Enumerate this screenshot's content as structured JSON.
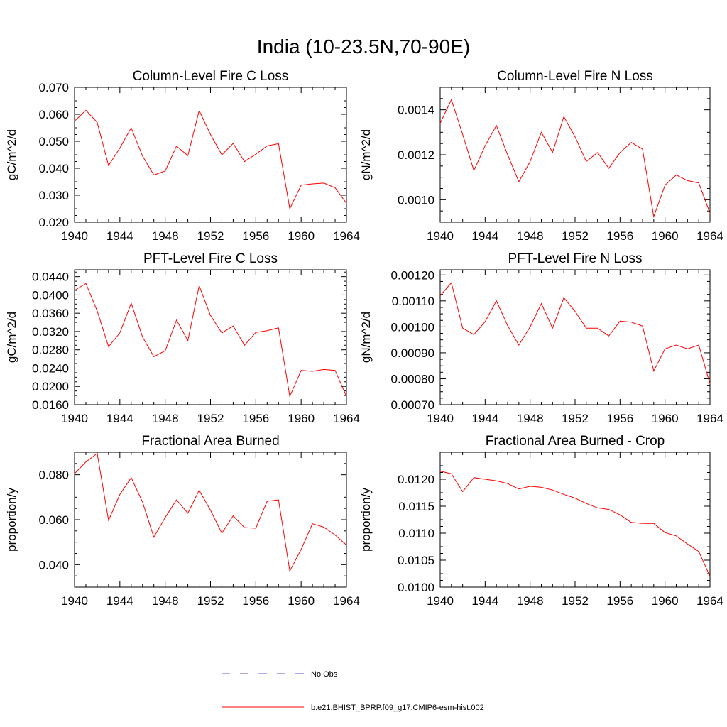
{
  "title": "India (10-23.5N,70-90E)",
  "colors": {
    "model_line": "#ff0000",
    "obs_line": "#5a5ad6"
  },
  "legend": {
    "entries": [
      {
        "label": "No Obs",
        "style": "dashed",
        "color": "#5a5ad6"
      },
      {
        "label": "b.e21.BHIST_BPRP.f09_g17.CMIP6-esm-hist.002",
        "style": "solid",
        "color": "#ff0000"
      }
    ]
  },
  "chart_data": [
    {
      "type": "line",
      "title": "Column-Level Fire C Loss",
      "xlabel": "",
      "ylabel": "gC/m^2/d",
      "xlim": [
        1940,
        1964
      ],
      "ylim": [
        0.02,
        0.07
      ],
      "xticks": [
        "1940",
        "1944",
        "1948",
        "1952",
        "1956",
        "1960",
        "1964"
      ],
      "yticks": [
        "0.020",
        "0.030",
        "0.040",
        "0.050",
        "0.060",
        "0.070"
      ],
      "x": [
        1940,
        1941,
        1942,
        1943,
        1944,
        1945,
        1946,
        1947,
        1948,
        1949,
        1950,
        1951,
        1952,
        1953,
        1954,
        1955,
        1956,
        1957,
        1958,
        1959,
        1960,
        1961,
        1962,
        1963,
        1964
      ],
      "series": [
        {
          "name": "b.e21.BHIST_BPRP.f09_g17.CMIP6-esm-hist.002",
          "values": [
            0.0575,
            0.0615,
            0.057,
            0.041,
            0.0475,
            0.055,
            0.0445,
            0.0375,
            0.039,
            0.0482,
            0.0447,
            0.0614,
            0.0525,
            0.045,
            0.0492,
            0.0425,
            0.0452,
            0.0483,
            0.0491,
            0.025,
            0.0337,
            0.0342,
            0.0345,
            0.0328,
            0.027
          ]
        }
      ]
    },
    {
      "type": "line",
      "title": "Column-Level Fire N Loss",
      "xlabel": "",
      "ylabel": "gN/m^2/d",
      "xlim": [
        1940,
        1964
      ],
      "ylim": [
        0.0009,
        0.0015
      ],
      "xticks": [
        "1940",
        "1944",
        "1948",
        "1952",
        "1956",
        "1960",
        "1964"
      ],
      "yticks": [
        "0.0010",
        "0.0012",
        "0.0014"
      ],
      "x": [
        1940,
        1941,
        1942,
        1943,
        1944,
        1945,
        1946,
        1947,
        1948,
        1949,
        1950,
        1951,
        1952,
        1953,
        1954,
        1955,
        1956,
        1957,
        1958,
        1959,
        1960,
        1961,
        1962,
        1963,
        1964
      ],
      "series": [
        {
          "name": "b.e21.BHIST_BPRP.f09_g17.CMIP6-esm-hist.002",
          "values": [
            0.00134,
            0.001445,
            0.00129,
            0.00113,
            0.00124,
            0.00133,
            0.0012,
            0.00108,
            0.00117,
            0.0013,
            0.00121,
            0.00137,
            0.00128,
            0.00117,
            0.00121,
            0.00114,
            0.00121,
            0.001255,
            0.001225,
            0.000925,
            0.001065,
            0.00111,
            0.001085,
            0.001075,
            0.00094
          ]
        }
      ]
    },
    {
      "type": "line",
      "title": "PFT-Level Fire C Loss",
      "xlabel": "",
      "ylabel": "gC/m^2/d",
      "xlim": [
        1940,
        1964
      ],
      "ylim": [
        0.016,
        0.0455
      ],
      "xticks": [
        "1940",
        "1944",
        "1948",
        "1952",
        "1956",
        "1960",
        "1964"
      ],
      "yticks": [
        "0.0160",
        "0.0200",
        "0.0240",
        "0.0280",
        "0.0320",
        "0.0360",
        "0.0400",
        "0.0440"
      ],
      "x": [
        1940,
        1941,
        1942,
        1943,
        1944,
        1945,
        1946,
        1947,
        1948,
        1949,
        1950,
        1951,
        1952,
        1953,
        1954,
        1955,
        1956,
        1957,
        1958,
        1959,
        1960,
        1961,
        1962,
        1963,
        1964
      ],
      "series": [
        {
          "name": "b.e21.BHIST_BPRP.f09_g17.CMIP6-esm-hist.002",
          "values": [
            0.041,
            0.0425,
            0.0365,
            0.0287,
            0.0317,
            0.0382,
            0.0308,
            0.0265,
            0.0278,
            0.0345,
            0.03,
            0.042,
            0.0355,
            0.0317,
            0.0332,
            0.029,
            0.0318,
            0.0322,
            0.0328,
            0.0178,
            0.0235,
            0.0233,
            0.0237,
            0.0235,
            0.0178
          ]
        }
      ]
    },
    {
      "type": "line",
      "title": "PFT-Level Fire N Loss",
      "xlabel": "",
      "ylabel": "gN/m^2/d",
      "xlim": [
        1940,
        1964
      ],
      "ylim": [
        0.0007,
        0.00122
      ],
      "xticks": [
        "1940",
        "1944",
        "1948",
        "1952",
        "1956",
        "1960",
        "1964"
      ],
      "yticks": [
        "0.00070",
        "0.00080",
        "0.00090",
        "0.00100",
        "0.00110",
        "0.00120"
      ],
      "x": [
        1940,
        1941,
        1942,
        1943,
        1944,
        1945,
        1946,
        1947,
        1948,
        1949,
        1950,
        1951,
        1952,
        1953,
        1954,
        1955,
        1956,
        1957,
        1958,
        1959,
        1960,
        1961,
        1962,
        1963,
        1964
      ],
      "series": [
        {
          "name": "b.e21.BHIST_BPRP.f09_g17.CMIP6-esm-hist.002",
          "values": [
            0.00112,
            0.00117,
            0.000995,
            0.00097,
            0.00102,
            0.0011,
            0.001005,
            0.00093,
            0.001,
            0.00109,
            0.000995,
            0.001112,
            0.00106,
            0.000995,
            0.000995,
            0.000965,
            0.001022,
            0.001018,
            0.001003,
            0.00083,
            0.000915,
            0.00093,
            0.000915,
            0.00093,
            0.00078
          ]
        }
      ]
    },
    {
      "type": "line",
      "title": "Fractional Area Burned",
      "xlabel": "",
      "ylabel": "proportion/y",
      "xlim": [
        1940,
        1964
      ],
      "ylim": [
        0.03,
        0.09
      ],
      "xticks": [
        "1940",
        "1944",
        "1948",
        "1952",
        "1956",
        "1960",
        "1964"
      ],
      "yticks": [
        "0.040",
        "0.060",
        "0.080"
      ],
      "x": [
        1940,
        1941,
        1942,
        1943,
        1944,
        1945,
        1946,
        1947,
        1948,
        1949,
        1950,
        1951,
        1952,
        1953,
        1954,
        1955,
        1956,
        1957,
        1958,
        1959,
        1960,
        1961,
        1962,
        1963,
        1964
      ],
      "series": [
        {
          "name": "b.e21.BHIST_BPRP.f09_g17.CMIP6-esm-hist.002",
          "values": [
            0.0805,
            0.0857,
            0.0895,
            0.0597,
            0.0712,
            0.0787,
            0.0678,
            0.0522,
            0.061,
            0.0688,
            0.0629,
            0.0731,
            0.0642,
            0.054,
            0.0617,
            0.0565,
            0.0562,
            0.0682,
            0.0688,
            0.0372,
            0.0468,
            0.0582,
            0.0567,
            0.0532,
            0.0487
          ]
        }
      ]
    },
    {
      "type": "line",
      "title": "Fractional Area Burned - Crop",
      "xlabel": "",
      "ylabel": "proportion/y",
      "xlim": [
        1940,
        1964
      ],
      "ylim": [
        0.01,
        0.0125
      ],
      "xticks": [
        "1940",
        "1944",
        "1948",
        "1952",
        "1956",
        "1960",
        "1964"
      ],
      "yticks": [
        "0.0100",
        "0.0105",
        "0.0110",
        "0.0115",
        "0.0120"
      ],
      "x": [
        1940,
        1941,
        1942,
        1943,
        1944,
        1945,
        1946,
        1947,
        1948,
        1949,
        1950,
        1951,
        1952,
        1953,
        1954,
        1955,
        1956,
        1957,
        1958,
        1959,
        1960,
        1961,
        1962,
        1963,
        1964
      ],
      "series": [
        {
          "name": "b.e21.BHIST_BPRP.f09_g17.CMIP6-esm-hist.002",
          "values": [
            0.01215,
            0.0121,
            0.01177,
            0.01203,
            0.012,
            0.01197,
            0.01192,
            0.01182,
            0.01187,
            0.01185,
            0.0118,
            0.01172,
            0.01165,
            0.01155,
            0.01147,
            0.01144,
            0.01134,
            0.0112,
            0.01118,
            0.01118,
            0.01101,
            0.01095,
            0.0108,
            0.01066,
            0.0102
          ]
        }
      ]
    }
  ]
}
